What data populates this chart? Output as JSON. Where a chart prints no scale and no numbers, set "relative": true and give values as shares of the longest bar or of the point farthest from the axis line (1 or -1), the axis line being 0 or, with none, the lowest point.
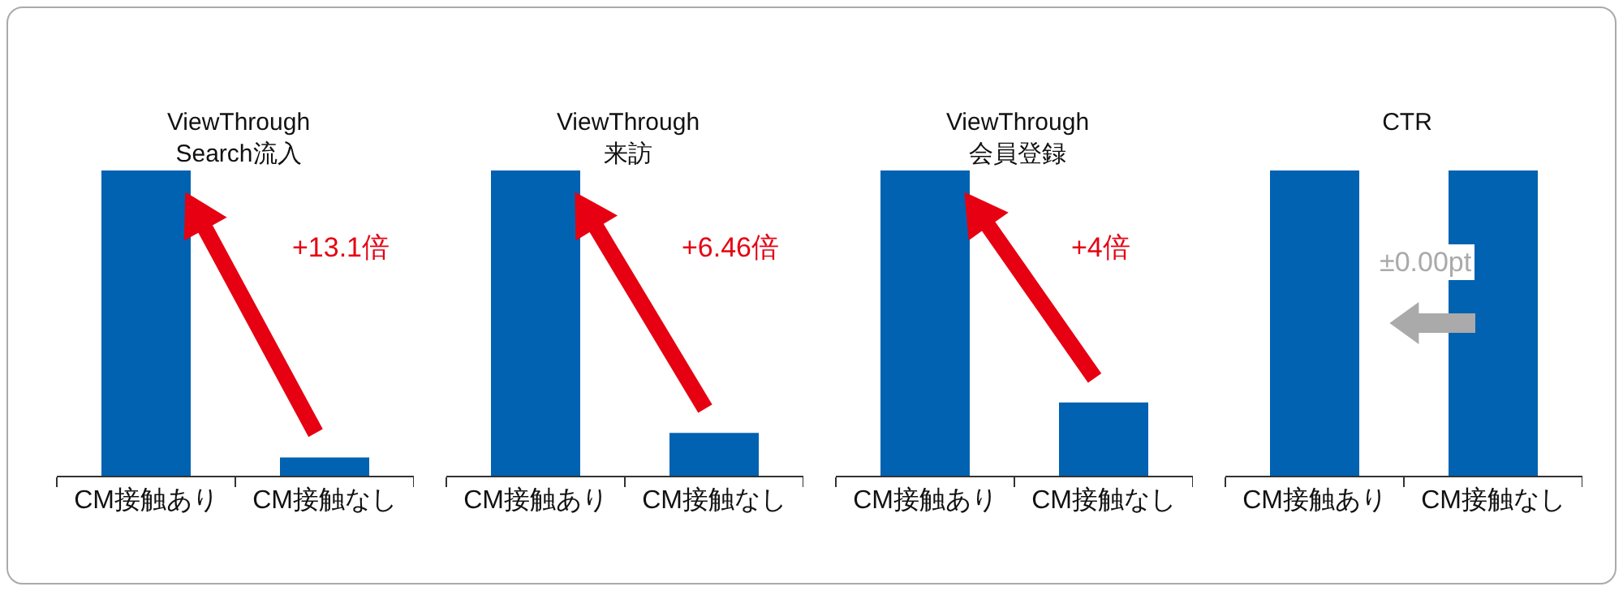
{
  "chart_data": [
    {
      "type": "bar",
      "relative": true,
      "title": "ViewThrough\nSearch流入",
      "categories": [
        "CM接触あり",
        "CM接触なし"
      ],
      "values": [
        1,
        0.06
      ],
      "color": "#0062b1",
      "legend": false,
      "annotations": [
        "+13.1倍"
      ]
    },
    {
      "type": "bar",
      "relative": true,
      "title": "ViewThrough\n来訪",
      "categories": [
        "CM接触あり",
        "CM接触なし"
      ],
      "values": [
        1,
        0.14
      ],
      "color": "#0062b1",
      "legend": false,
      "annotations": [
        "+6.46倍"
      ]
    },
    {
      "type": "bar",
      "relative": true,
      "title": "ViewThrough\n会員登録",
      "categories": [
        "CM接触あり",
        "CM接触なし"
      ],
      "values": [
        1,
        0.24
      ],
      "color": "#0062b1",
      "legend": false,
      "annotations": [
        "+4倍"
      ]
    },
    {
      "type": "bar",
      "relative": true,
      "title": "CTR",
      "categories": [
        "CM接触あり",
        "CM接触なし"
      ],
      "values": [
        1,
        1
      ],
      "color": "#0062b1",
      "legend": false,
      "annotations": [
        "±0.00pt"
      ]
    }
  ]
}
